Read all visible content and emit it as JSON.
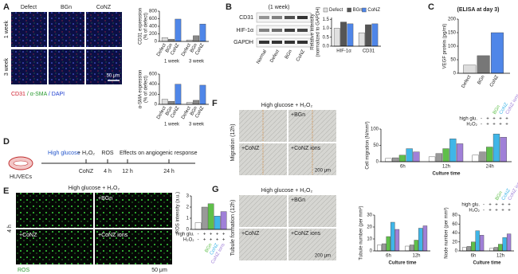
{
  "panels": {
    "A": {
      "label": "A",
      "columns": [
        "Defect",
        "BGn",
        "CoNZ"
      ],
      "rows": [
        "1 week",
        "3 week"
      ],
      "scale_bar": "50 μm",
      "stain": [
        "CD31",
        "/ α-SMA",
        "/ DAPI"
      ],
      "charts": [
        {
          "type": "bar",
          "ylabel": [
            "CD31 expression",
            "(% of defect)"
          ],
          "groups": [
            "1 week",
            "3 week"
          ],
          "bar_names": true,
          "series": [
            {
              "name": "Defect",
              "color": "#dddddd",
              "values": [
                100,
                40
              ]
            },
            {
              "name": "BGn",
              "color": "#888888",
              "values": [
                60,
                150
              ]
            },
            {
              "name": "CoNZ",
              "color": "#4f86e8",
              "values": [
                590,
                460
              ]
            }
          ],
          "ylim": [
            0,
            800
          ],
          "yticks": [
            0,
            200,
            400,
            600,
            800
          ]
        },
        {
          "type": "bar",
          "ylabel": [
            "α-SMA expression",
            "(% of defect)"
          ],
          "groups": [
            "1 week",
            "3 week"
          ],
          "bar_names": true,
          "series": [
            {
              "name": "Defect",
              "color": "#dddddd",
              "values": [
                100,
                40
              ]
            },
            {
              "name": "BGn",
              "color": "#888888",
              "values": [
                60,
                80
              ]
            },
            {
              "name": "CoNZ",
              "color": "#4f86e8",
              "values": [
                400,
                380
              ]
            }
          ],
          "ylim": [
            0,
            600
          ],
          "yticks": [
            0,
            200,
            400,
            600
          ]
        }
      ]
    },
    "B": {
      "label": "B",
      "subtitle": "(1 week)",
      "blot_rows": [
        "CD31",
        "HIF-1α",
        "GAPDH"
      ],
      "lanes": [
        "Normal",
        "Defect",
        "BGn",
        "CoNZ"
      ],
      "chart": {
        "type": "bar",
        "ylabel": [
          "Relative intensity",
          "(normalized to GAPDH)"
        ],
        "groups": [
          "HIF-1α",
          "CD31"
        ],
        "legend": "top",
        "series": [
          {
            "name": "Defect",
            "color": "#e0e0e0",
            "values": [
              1.0,
              0.75
            ]
          },
          {
            "name": "BGn",
            "color": "#555555",
            "values": [
              1.35,
              1.2
            ]
          },
          {
            "name": "CoNZ",
            "color": "#4f86e8",
            "values": [
              1.25,
              1.25
            ]
          }
        ],
        "ylim": [
          0,
          1.6
        ],
        "yticks": [
          {
            "value": 0,
            "label": "0.0"
          },
          {
            "value": 0.5,
            "label": "0.5"
          },
          {
            "value": 1,
            "label": "1.0"
          },
          {
            "value": 1.5,
            "label": "1.5"
          }
        ]
      }
    },
    "C": {
      "label": "C",
      "subtitle": "(ELISA at day 3)",
      "chart": {
        "type": "bar",
        "ylabel": [
          "VEGF protein (pg/ml)"
        ],
        "bar_names": true,
        "series": [
          {
            "name": "Defect",
            "color": "#dddddd",
            "values": [
              30
            ]
          },
          {
            "name": "BGn",
            "color": "#777777",
            "values": [
              65
            ]
          },
          {
            "name": "CoNZ",
            "color": "#4f86e8",
            "values": [
              150
            ]
          }
        ],
        "ylim": [
          0,
          200
        ],
        "yticks": [
          0,
          50,
          100,
          150,
          200
        ]
      }
    },
    "D": {
      "label": "D",
      "cells": "HUVECs",
      "steps": [
        "High glucose",
        "+ H₂O₂",
        "ROS",
        "Effects on angiogenic response"
      ],
      "below": [
        "CoNZ",
        "4 h",
        "12 h",
        "24 h"
      ]
    },
    "E": {
      "label": "E",
      "header": "High glucose + H₂O₂",
      "tiles": [
        "+BGn",
        "+CoNZ",
        "+CoNZ ions"
      ],
      "row": "4 h",
      "stain": "ROS",
      "scale_bar": "50 μm",
      "chart": {
        "type": "bar",
        "ylabel": [
          "ROS intensity (a.u.)"
        ],
        "conditions_position": "bottom",
        "conditions": [
          {
            "name": "high glu.",
            "signs": [
              "-",
              "+",
              "+",
              "+",
              "+"
            ]
          },
          {
            "name": "H₂O₂",
            "signs": [
              "-",
              "+",
              "+",
              "+",
              "+"
            ]
          }
        ],
        "series": [
          {
            "color": "#ffffff",
            "values": [
              0.6
            ]
          },
          {
            "color": "#999999",
            "values": [
              2.0
            ]
          },
          {
            "name": "BGn",
            "color": "#5fbf4a",
            "values": [
              2.3
            ]
          },
          {
            "name": "CoNZ",
            "color": "#3fb6e8",
            "values": [
              1.2
            ]
          },
          {
            "name": "CoNZ ions",
            "color": "#a080d8",
            "values": [
              1.6
            ]
          }
        ],
        "ylim": [
          0,
          3
        ],
        "yticks": [
          0,
          1,
          2,
          3
        ]
      }
    },
    "F": {
      "label": "F",
      "header": "High glucose + H₂O₂",
      "tiles": [
        "+BGn",
        "+CoNZ",
        "+CoNZ ions"
      ],
      "side": "Migration (12h)",
      "scale_bar": "200 μm",
      "chart": {
        "type": "bar",
        "ylabel": [
          "Cell migration (N/mm²)"
        ],
        "xlabel": "Culture time",
        "groups": [
          "6h",
          "12h",
          "24h"
        ],
        "conditions_position": "top",
        "conditions": [
          {
            "name": "high glu.",
            "signs": [
              "-",
              "+",
              "+",
              "+",
              "+"
            ]
          },
          {
            "name": "H₂O₂",
            "signs": [
              "-",
              "+",
              "+",
              "+",
              "+"
            ]
          }
        ],
        "series": [
          {
            "color": "#ffffff",
            "values": [
              10,
              15,
              20
            ]
          },
          {
            "color": "#999999",
            "values": [
              12,
              25,
              30
            ]
          },
          {
            "name": "BGn",
            "color": "#5fbf4a",
            "values": [
              20,
              40,
              45
            ]
          },
          {
            "name": "CoNZ",
            "color": "#3fb6e8",
            "values": [
              40,
              70,
              85
            ]
          },
          {
            "name": "CoNZ ions",
            "color": "#a080d8",
            "values": [
              30,
              55,
              75
            ]
          }
        ],
        "ylim": [
          0,
          100
        ],
        "yticks": [
          0,
          50,
          100
        ]
      }
    },
    "G": {
      "label": "G",
      "header": "High glucose + H₂O₂",
      "tiles": [
        "+BGn",
        "+CoNZ",
        "+CoNZ ions"
      ],
      "side": "Tubule formation (12h)",
      "scale_bar": "200 μm",
      "charts": [
        {
          "type": "bar",
          "ylabel": [
            "Tubule number (per mm²)"
          ],
          "xlabel": "Culture time",
          "groups": [
            "6h",
            "12h"
          ],
          "series": [
            {
              "color": "#ffffff",
              "values": [
                5,
                4
              ]
            },
            {
              "color": "#999999",
              "values": [
                6,
                5
              ]
            },
            {
              "color": "#5fbf4a",
              "values": [
                12,
                9
              ]
            },
            {
              "color": "#3fb6e8",
              "values": [
                24,
                19
              ]
            },
            {
              "color": "#a080d8",
              "values": [
                18,
                21
              ]
            }
          ],
          "ylim": [
            0,
            30
          ],
          "yticks": [
            0,
            10,
            20,
            30
          ]
        },
        {
          "type": "bar",
          "ylabel": [
            "Node number (per mm²)"
          ],
          "xlabel": "Culture time",
          "groups": [
            "6h",
            "12h"
          ],
          "conditions_position": "top",
          "conditions": [
            {
              "name": "high glu.",
              "signs": [
                "-",
                "+",
                "+",
                "+",
                "+"
              ]
            },
            {
              "name": "H₂O₂",
              "signs": [
                "-",
                "+",
                "+",
                "+",
                "+"
              ]
            }
          ],
          "series": [
            {
              "color": "#ffffff",
              "values": [
                8,
                6
              ]
            },
            {
              "color": "#999999",
              "values": [
                10,
                8
              ]
            },
            {
              "name": "BGn",
              "color": "#5fbf4a",
              "values": [
                20,
                15
              ]
            },
            {
              "name": "CoNZ",
              "color": "#3fb6e8",
              "values": [
                45,
                30
              ]
            },
            {
              "name": "CoNZ ions",
              "color": "#a080d8",
              "values": [
                35,
                38
              ]
            }
          ],
          "ylim": [
            0,
            80
          ],
          "yticks": [
            0,
            20,
            40,
            60,
            80
          ]
        }
      ]
    }
  }
}
